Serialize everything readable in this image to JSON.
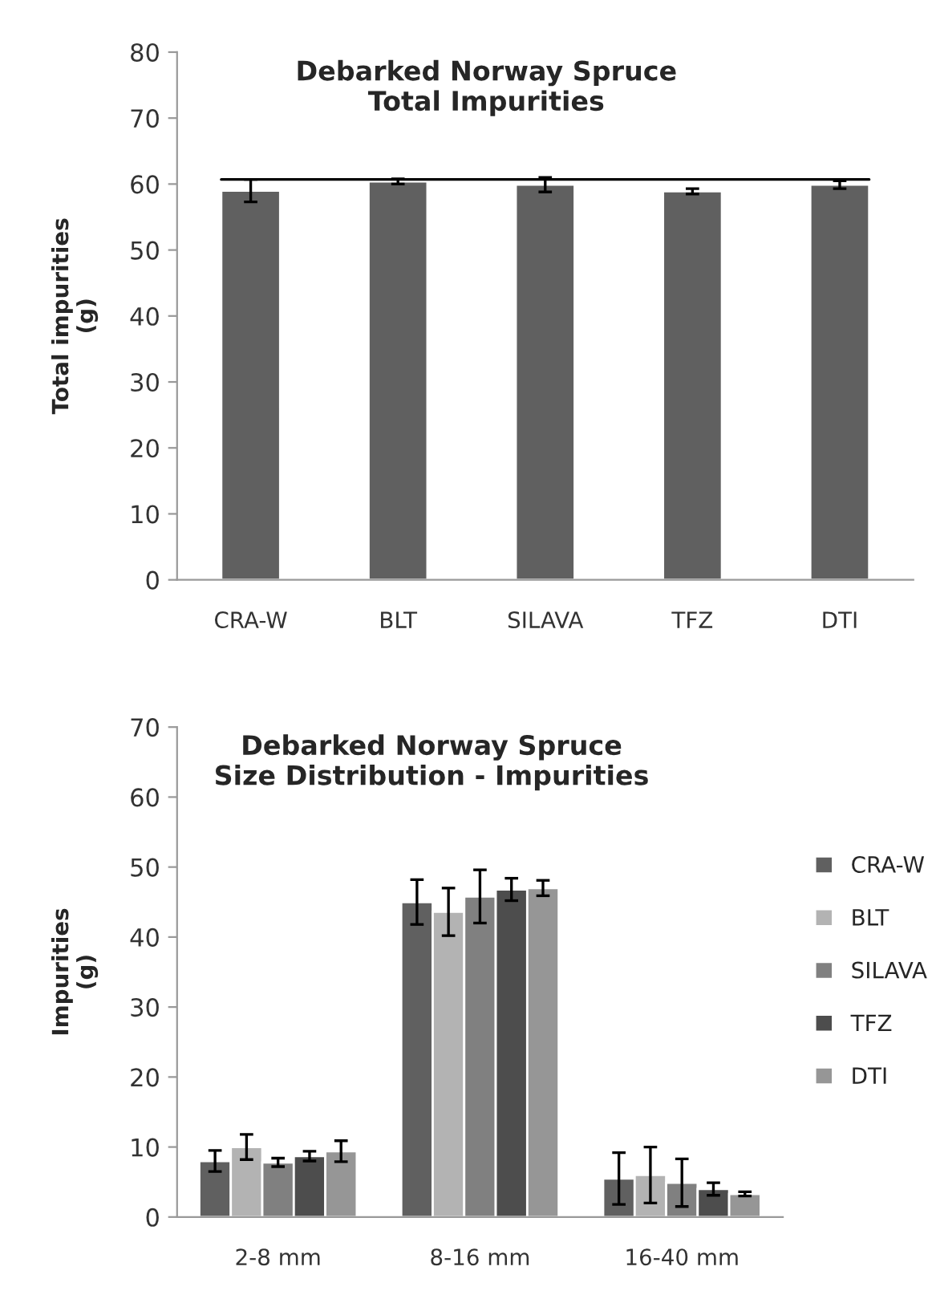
{
  "chart_data": [
    {
      "type": "bar",
      "title": "Debarked Norway Spruce\nTotal Impurities",
      "ylabel": "Total impurities\n(g)",
      "categories": [
        "CRA-W",
        "BLT",
        "SILAVA",
        "TFZ",
        "DTI"
      ],
      "series": [
        {
          "color": "#606060",
          "values": [
            59.0,
            60.4,
            59.9,
            58.9,
            59.9
          ],
          "errors": [
            1.7,
            0.4,
            1.1,
            0.4,
            0.6
          ]
        }
      ],
      "ref_lines": [
        {
          "axis": "y",
          "value": 60.7,
          "color": "#000000"
        }
      ],
      "ylim": [
        0,
        80
      ],
      "yticks": [
        0,
        10,
        20,
        30,
        40,
        50,
        60,
        70,
        80
      ],
      "grid": false,
      "legend": false
    },
    {
      "type": "bar",
      "title": "Debarked Norway Spruce\nSize Distribution - Impurities",
      "ylabel": "Impurities\n(g)",
      "categories": [
        "2-8 mm",
        "8-16 mm",
        "16-40 mm"
      ],
      "series": [
        {
          "name": "CRA-W",
          "color": "#606060",
          "values": [
            8.0,
            45.0,
            5.5
          ],
          "errors": [
            1.5,
            3.2,
            3.7
          ]
        },
        {
          "name": "BLT",
          "color": "#b3b3b3",
          "values": [
            10.0,
            43.6,
            6.0
          ],
          "errors": [
            1.8,
            3.4,
            4.0
          ]
        },
        {
          "name": "SILAVA",
          "color": "#808080",
          "values": [
            7.8,
            45.8,
            4.9
          ],
          "errors": [
            0.6,
            3.8,
            3.4
          ]
        },
        {
          "name": "TFZ",
          "color": "#4d4d4d",
          "values": [
            8.7,
            46.8,
            4.0
          ],
          "errors": [
            0.7,
            1.6,
            0.9
          ]
        },
        {
          "name": "DTI",
          "color": "#969696",
          "values": [
            9.4,
            47.0,
            3.3
          ],
          "errors": [
            1.5,
            1.1,
            0.3
          ]
        }
      ],
      "ylim": [
        0,
        70
      ],
      "yticks": [
        0,
        10,
        20,
        30,
        40,
        50,
        60,
        70
      ],
      "grid": false,
      "legend": "right"
    }
  ]
}
